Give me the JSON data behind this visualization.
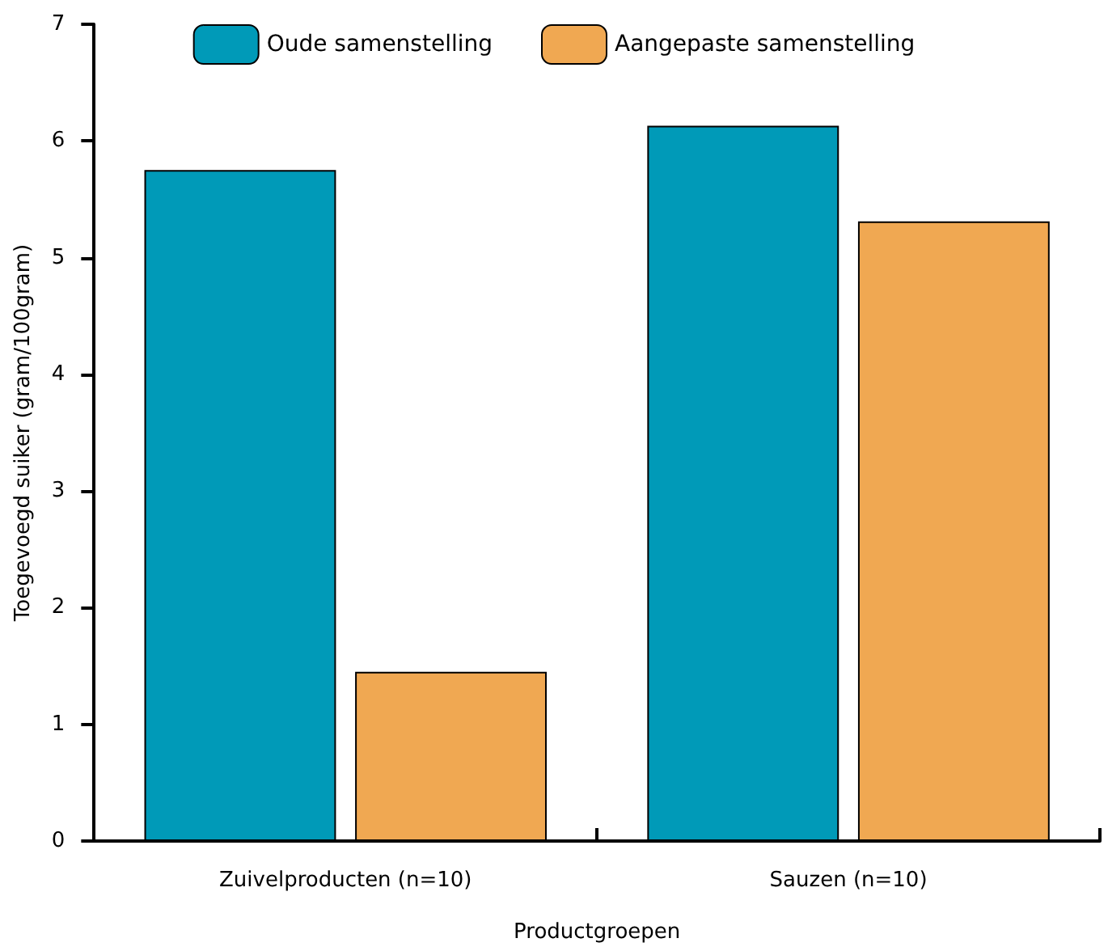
{
  "chart_data": {
    "type": "bar",
    "xlabel": "Productgroepen",
    "ylabel": "Toegevoegd suiker (gram/100gram)",
    "categories": [
      "Zuivelproducten (n=10)",
      "Sauzen (n=10)"
    ],
    "series": [
      {
        "name": "Oude samenstelling",
        "color": "#009ab8",
        "values": [
          5.75,
          6.13
        ]
      },
      {
        "name": "Aangepaste samenstelling",
        "color": "#f0a852",
        "values": [
          1.45,
          5.31
        ]
      }
    ],
    "ylim": [
      0,
      7
    ],
    "yticks": [
      0,
      1,
      2,
      3,
      4,
      5,
      6,
      7
    ],
    "grid": false,
    "legend": "top"
  }
}
